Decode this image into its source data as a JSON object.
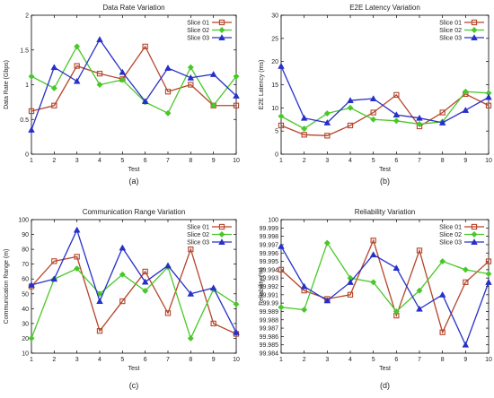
{
  "chart_data": [
    {
      "type": "line",
      "title": "Data Rate Variation",
      "xlabel": "Test",
      "ylabel": "Data Rate (Gbps)",
      "caption": "(a)",
      "x": [
        1,
        2,
        3,
        4,
        5,
        6,
        7,
        8,
        9,
        10
      ],
      "xlim": [
        1,
        10
      ],
      "ylim": [
        0,
        2
      ],
      "yticks": [
        "0",
        "0.5",
        "1",
        "1.5",
        "2"
      ],
      "grid": false,
      "legend_position": "top-right",
      "series": [
        {
          "name": "Slice 01",
          "color": "#b5452a",
          "marker": "square",
          "values": [
            0.62,
            0.7,
            1.27,
            1.16,
            1.08,
            1.55,
            0.9,
            1.0,
            0.7,
            0.7
          ]
        },
        {
          "name": "Slice 02",
          "color": "#48c828",
          "marker": "diamond",
          "values": [
            1.12,
            0.95,
            1.55,
            1.0,
            1.07,
            0.75,
            0.59,
            1.25,
            0.7,
            1.12
          ]
        },
        {
          "name": "Slice 03",
          "color": "#2630c8",
          "marker": "triangle",
          "values": [
            0.35,
            1.25,
            1.05,
            1.65,
            1.18,
            0.76,
            1.24,
            1.1,
            1.15,
            0.84
          ]
        }
      ]
    },
    {
      "type": "line",
      "title": "E2E Latency Variation",
      "xlabel": "Test",
      "ylabel": "E2E Latency (ms)",
      "caption": "(b)",
      "x": [
        1,
        2,
        3,
        4,
        5,
        6,
        7,
        8,
        9,
        10
      ],
      "xlim": [
        1,
        10
      ],
      "ylim": [
        0,
        30
      ],
      "yticks": [
        "0",
        "5",
        "10",
        "15",
        "20",
        "25",
        "30"
      ],
      "grid": false,
      "legend_position": "top-right",
      "series": [
        {
          "name": "Slice 01",
          "color": "#b5452a",
          "marker": "square",
          "values": [
            6.2,
            4.2,
            4.0,
            6.2,
            9.0,
            12.8,
            6.0,
            9.0,
            13.0,
            10.5
          ]
        },
        {
          "name": "Slice 02",
          "color": "#48c828",
          "marker": "diamond",
          "values": [
            8.2,
            5.5,
            8.8,
            10.0,
            7.5,
            7.2,
            6.5,
            7.0,
            13.5,
            13.2
          ]
        },
        {
          "name": "Slice 03",
          "color": "#2630c8",
          "marker": "triangle",
          "values": [
            19.0,
            7.8,
            6.8,
            11.6,
            12.0,
            8.5,
            7.8,
            6.8,
            9.5,
            12.3
          ]
        }
      ]
    },
    {
      "type": "line",
      "title": "Communication Range Variation",
      "xlabel": "Test",
      "ylabel": "Communication Range (m)",
      "caption": "(c)",
      "x": [
        1,
        2,
        3,
        4,
        5,
        6,
        7,
        8,
        9,
        10
      ],
      "xlim": [
        1,
        10
      ],
      "ylim": [
        10,
        100
      ],
      "yticks": [
        "10",
        "20",
        "30",
        "40",
        "50",
        "60",
        "70",
        "80",
        "90",
        "100"
      ],
      "grid": false,
      "legend_position": "top-right",
      "series": [
        {
          "name": "Slice 01",
          "color": "#b5452a",
          "marker": "square",
          "values": [
            55,
            72,
            75,
            25,
            45,
            65,
            37,
            80,
            30,
            23
          ]
        },
        {
          "name": "Slice 02",
          "color": "#48c828",
          "marker": "diamond",
          "values": [
            20,
            60,
            67,
            50,
            63,
            52,
            68,
            20,
            53,
            43
          ]
        },
        {
          "name": "Slice 03",
          "color": "#2630c8",
          "marker": "triangle",
          "values": [
            56,
            60,
            93,
            45,
            81,
            58,
            69,
            50,
            54,
            24
          ]
        }
      ]
    },
    {
      "type": "line",
      "title": "Reliability Variation",
      "xlabel": "Test",
      "ylabel": "Reliability (%)",
      "caption": "(d)",
      "x": [
        1,
        2,
        3,
        4,
        5,
        6,
        7,
        8,
        9,
        10
      ],
      "xlim": [
        1,
        10
      ],
      "ylim": [
        99.984,
        100
      ],
      "yticks": [
        "99.984",
        "99.985",
        "99.986",
        "99.987",
        "99.988",
        "99.989",
        "99.99",
        "99.991",
        "99.992",
        "99.993",
        "99.994",
        "99.995",
        "99.996",
        "99.997",
        "99.998",
        "99.999",
        "100"
      ],
      "grid": false,
      "legend_position": "top-right",
      "series": [
        {
          "name": "Slice 01",
          "color": "#b5452a",
          "marker": "square",
          "values": [
            99.994,
            99.9915,
            99.9905,
            99.991,
            99.9975,
            99.9885,
            99.9963,
            99.9865,
            99.9925,
            99.995
          ]
        },
        {
          "name": "Slice 02",
          "color": "#48c828",
          "marker": "diamond",
          "values": [
            99.9895,
            99.9892,
            99.9972,
            99.993,
            99.9925,
            99.989,
            99.9915,
            99.995,
            99.994,
            99.9935
          ]
        },
        {
          "name": "Slice 03",
          "color": "#2630c8",
          "marker": "triangle",
          "values": [
            99.9968,
            99.992,
            99.9903,
            99.9925,
            99.9958,
            99.9942,
            99.9893,
            99.991,
            99.985,
            99.9925
          ]
        }
      ]
    }
  ]
}
